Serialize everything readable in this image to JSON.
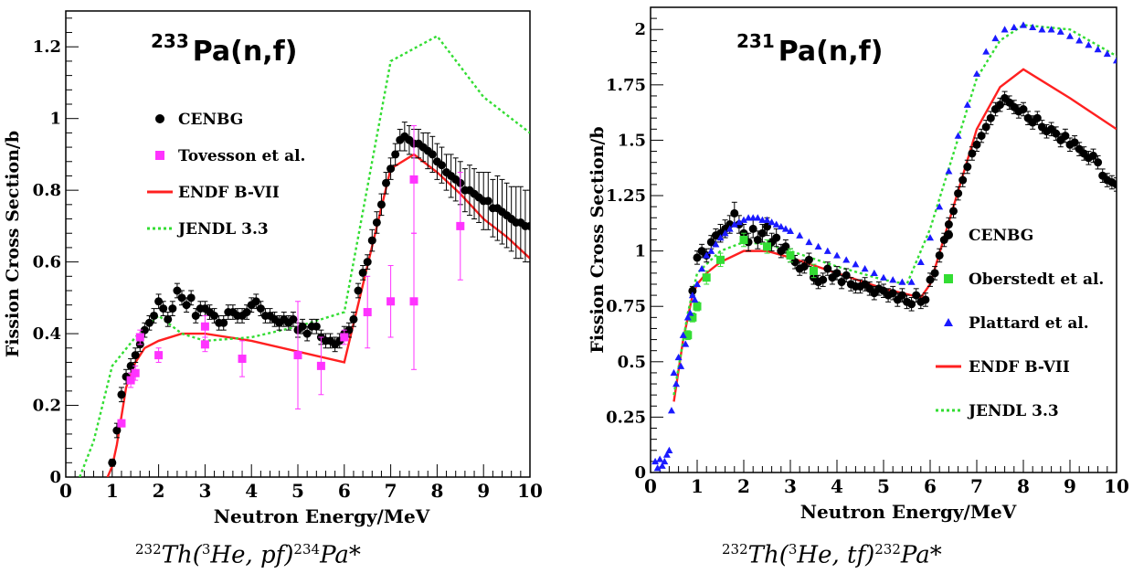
{
  "chart_data": [
    {
      "type": "scatter",
      "title": "233 Pa(n,f)",
      "title_superscript": "233",
      "title_main": "Pa(n,f)",
      "xlabel": "Neutron Energy/MeV",
      "ylabel": "Fission Cross Section/b",
      "xlim": [
        0,
        10
      ],
      "ylim": [
        0,
        1.3
      ],
      "xticks": [
        0,
        1,
        2,
        3,
        4,
        5,
        6,
        7,
        8,
        9,
        10
      ],
      "yticks": [
        0,
        0.2,
        0.4,
        0.6,
        0.8,
        1,
        1.2
      ],
      "ytick_labels": [
        "0",
        "0.2",
        "0.4",
        "0.6",
        "0.8",
        "1",
        "1.2"
      ],
      "legend_position": "left",
      "caption": {
        "l1": "232",
        "t1": "Th(",
        "l2": "3",
        "t2": "He, pf)",
        "l3": "234",
        "t3": "Pa*"
      },
      "series": [
        {
          "name": "CENBG",
          "kind": "points",
          "marker": "circle",
          "color": "#000000",
          "x": [
            1.0,
            1.1,
            1.2,
            1.3,
            1.4,
            1.5,
            1.6,
            1.7,
            1.8,
            1.9,
            2.0,
            2.1,
            2.2,
            2.3,
            2.4,
            2.5,
            2.6,
            2.7,
            2.8,
            2.9,
            3.0,
            3.1,
            3.2,
            3.3,
            3.4,
            3.5,
            3.6,
            3.7,
            3.8,
            3.9,
            4.0,
            4.1,
            4.2,
            4.3,
            4.4,
            4.5,
            4.6,
            4.7,
            4.8,
            4.9,
            5.0,
            5.1,
            5.2,
            5.3,
            5.4,
            5.5,
            5.6,
            5.7,
            5.8,
            5.9,
            6.0,
            6.1,
            6.2,
            6.3,
            6.4,
            6.5,
            6.6,
            6.7,
            6.8,
            6.9,
            7.0,
            7.1,
            7.2,
            7.3,
            7.4,
            7.5,
            7.6,
            7.7,
            7.8,
            7.9,
            8.0,
            8.1,
            8.2,
            8.3,
            8.4,
            8.5,
            8.6,
            8.7,
            8.8,
            8.9,
            9.0,
            9.1,
            9.2,
            9.3,
            9.4,
            9.5,
            9.6,
            9.7,
            9.8,
            9.9,
            10.0
          ],
          "y": [
            0.04,
            0.13,
            0.23,
            0.28,
            0.31,
            0.34,
            0.37,
            0.41,
            0.43,
            0.45,
            0.49,
            0.47,
            0.44,
            0.47,
            0.52,
            0.5,
            0.48,
            0.5,
            0.45,
            0.47,
            0.47,
            0.46,
            0.45,
            0.43,
            0.43,
            0.46,
            0.46,
            0.45,
            0.45,
            0.46,
            0.48,
            0.49,
            0.47,
            0.45,
            0.45,
            0.44,
            0.43,
            0.44,
            0.43,
            0.44,
            0.41,
            0.42,
            0.4,
            0.42,
            0.42,
            0.39,
            0.38,
            0.38,
            0.37,
            0.38,
            0.4,
            0.41,
            0.44,
            0.52,
            0.57,
            0.6,
            0.66,
            0.71,
            0.76,
            0.82,
            0.86,
            0.9,
            0.94,
            0.95,
            0.94,
            0.93,
            0.93,
            0.92,
            0.91,
            0.9,
            0.88,
            0.87,
            0.85,
            0.84,
            0.83,
            0.82,
            0.8,
            0.8,
            0.79,
            0.78,
            0.77,
            0.77,
            0.75,
            0.75,
            0.74,
            0.73,
            0.72,
            0.71,
            0.71,
            0.7,
            0.7
          ],
          "err": [
            0.01,
            0.02,
            0.02,
            0.02,
            0.02,
            0.02,
            0.02,
            0.02,
            0.02,
            0.02,
            0.02,
            0.02,
            0.02,
            0.02,
            0.02,
            0.02,
            0.02,
            0.02,
            0.02,
            0.02,
            0.02,
            0.02,
            0.02,
            0.02,
            0.02,
            0.02,
            0.02,
            0.02,
            0.02,
            0.02,
            0.02,
            0.02,
            0.02,
            0.02,
            0.02,
            0.02,
            0.02,
            0.02,
            0.02,
            0.02,
            0.02,
            0.02,
            0.02,
            0.02,
            0.02,
            0.02,
            0.02,
            0.02,
            0.02,
            0.02,
            0.02,
            0.02,
            0.02,
            0.02,
            0.02,
            0.02,
            0.03,
            0.03,
            0.03,
            0.03,
            0.03,
            0.03,
            0.03,
            0.04,
            0.04,
            0.04,
            0.04,
            0.04,
            0.05,
            0.05,
            0.05,
            0.05,
            0.05,
            0.06,
            0.06,
            0.06,
            0.06,
            0.07,
            0.07,
            0.07,
            0.08,
            0.08,
            0.08,
            0.09,
            0.09,
            0.09,
            0.09,
            0.1,
            0.1,
            0.1,
            0.1
          ]
        },
        {
          "name": "Tovesson et al.",
          "kind": "points",
          "marker": "square",
          "color": "#ff33ff",
          "x": [
            1.2,
            1.4,
            1.5,
            1.6,
            2.0,
            3.0,
            3.0,
            3.8,
            5.0,
            5.5,
            6.0,
            6.5,
            7.0,
            7.5,
            7.5,
            8.5
          ],
          "y": [
            0.15,
            0.27,
            0.29,
            0.39,
            0.34,
            0.37,
            0.42,
            0.33,
            0.34,
            0.31,
            0.39,
            0.46,
            0.49,
            0.49,
            0.83,
            0.7
          ],
          "err": [
            0.01,
            0.02,
            0.02,
            0.02,
            0.02,
            0.02,
            0.03,
            0.05,
            0.15,
            0.08,
            0.02,
            0.1,
            0.1,
            0.19,
            0.15,
            0.15
          ]
        },
        {
          "name": "ENDF B-VII",
          "kind": "line",
          "style": "solid",
          "color": "#ff2020",
          "x": [
            0.9,
            1.0,
            1.1,
            1.2,
            1.3,
            1.5,
            1.7,
            2.0,
            2.5,
            3.0,
            4.0,
            5.0,
            6.0,
            7.0,
            7.5,
            8.0,
            8.5,
            9.0,
            9.5,
            10.0
          ],
          "y": [
            0.0,
            0.03,
            0.09,
            0.17,
            0.25,
            0.32,
            0.36,
            0.38,
            0.4,
            0.4,
            0.38,
            0.35,
            0.32,
            0.86,
            0.9,
            0.85,
            0.79,
            0.72,
            0.67,
            0.61
          ]
        },
        {
          "name": "JENDL 3.3",
          "kind": "line",
          "style": "dotted",
          "color": "#33dd33",
          "x": [
            0.3,
            0.6,
            1.0,
            1.5,
            2.0,
            2.5,
            3.0,
            4.0,
            5.0,
            6.0,
            7.0,
            8.0,
            9.0,
            10.0
          ],
          "y": [
            0.0,
            0.1,
            0.31,
            0.39,
            0.45,
            0.4,
            0.38,
            0.39,
            0.42,
            0.46,
            1.16,
            1.23,
            1.06,
            0.96
          ]
        }
      ]
    },
    {
      "type": "scatter",
      "title": "231 Pa(n,f)",
      "title_superscript": "231",
      "title_main": "Pa(n,f)",
      "xlabel": "Neutron Energy/MeV",
      "ylabel": "Fission Cross Section/b",
      "xlim": [
        0,
        10
      ],
      "ylim": [
        0,
        2.1
      ],
      "xticks": [
        0,
        1,
        2,
        3,
        4,
        5,
        6,
        7,
        8,
        9,
        10
      ],
      "yticks": [
        0,
        0.25,
        0.5,
        0.75,
        1,
        1.25,
        1.5,
        1.75,
        2
      ],
      "ytick_labels": [
        "0",
        "0.25",
        "0.5",
        "0.75",
        "1",
        "1.25",
        "1.5",
        "1.75",
        "2"
      ],
      "legend_position": "right",
      "caption": {
        "l1": "232",
        "t1": "Th(",
        "l2": "3",
        "t2": "He, tf)",
        "l3": "232",
        "t3": "Pa*"
      },
      "series": [
        {
          "name": "CENBG",
          "kind": "points",
          "marker": "circle",
          "color": "#000000",
          "x": [
            0.9,
            1.0,
            1.1,
            1.2,
            1.3,
            1.4,
            1.5,
            1.6,
            1.7,
            1.8,
            1.9,
            2.0,
            2.1,
            2.2,
            2.3,
            2.4,
            2.5,
            2.6,
            2.7,
            2.8,
            2.9,
            3.0,
            3.1,
            3.2,
            3.3,
            3.4,
            3.5,
            3.6,
            3.7,
            3.8,
            3.9,
            4.0,
            4.1,
            4.2,
            4.3,
            4.4,
            4.5,
            4.6,
            4.7,
            4.8,
            4.9,
            5.0,
            5.1,
            5.2,
            5.3,
            5.4,
            5.5,
            5.6,
            5.7,
            5.8,
            5.9,
            6.0,
            6.1,
            6.2,
            6.3,
            6.4,
            6.5,
            6.6,
            6.7,
            6.8,
            6.9,
            7.0,
            7.1,
            7.2,
            7.3,
            7.4,
            7.5,
            7.6,
            7.7,
            7.8,
            7.9,
            8.0,
            8.1,
            8.2,
            8.3,
            8.4,
            8.5,
            8.6,
            8.7,
            8.8,
            8.9,
            9.0,
            9.1,
            9.2,
            9.3,
            9.4,
            9.5,
            9.6,
            9.7,
            9.8,
            9.9,
            10.0
          ],
          "y": [
            0.82,
            0.97,
            1.0,
            0.98,
            1.04,
            1.07,
            1.08,
            1.1,
            1.12,
            1.17,
            1.12,
            1.08,
            1.04,
            1.1,
            1.05,
            1.08,
            1.11,
            1.04,
            1.06,
            1.0,
            1.02,
            0.98,
            0.95,
            0.92,
            0.93,
            0.96,
            0.88,
            0.86,
            0.87,
            0.92,
            0.88,
            0.9,
            0.86,
            0.89,
            0.85,
            0.84,
            0.84,
            0.85,
            0.83,
            0.81,
            0.83,
            0.82,
            0.8,
            0.81,
            0.78,
            0.8,
            0.77,
            0.76,
            0.8,
            0.77,
            0.78,
            0.87,
            0.9,
            0.98,
            1.05,
            1.12,
            1.18,
            1.26,
            1.32,
            1.38,
            1.44,
            1.48,
            1.52,
            1.56,
            1.6,
            1.64,
            1.66,
            1.69,
            1.67,
            1.65,
            1.63,
            1.64,
            1.6,
            1.58,
            1.6,
            1.56,
            1.54,
            1.55,
            1.53,
            1.5,
            1.52,
            1.48,
            1.49,
            1.46,
            1.44,
            1.42,
            1.43,
            1.4,
            1.34,
            1.32,
            1.31,
            1.3
          ],
          "err": [
            0.02,
            0.03,
            0.03,
            0.03,
            0.03,
            0.03,
            0.04,
            0.04,
            0.04,
            0.05,
            0.04,
            0.04,
            0.04,
            0.04,
            0.04,
            0.04,
            0.04,
            0.04,
            0.04,
            0.03,
            0.03,
            0.03,
            0.03,
            0.03,
            0.03,
            0.03,
            0.03,
            0.03,
            0.03,
            0.03,
            0.03,
            0.03,
            0.03,
            0.03,
            0.03,
            0.03,
            0.03,
            0.03,
            0.03,
            0.03,
            0.03,
            0.03,
            0.03,
            0.03,
            0.03,
            0.03,
            0.03,
            0.03,
            0.03,
            0.03,
            0.03,
            0.03,
            0.03,
            0.03,
            0.03,
            0.03,
            0.03,
            0.03,
            0.03,
            0.03,
            0.03,
            0.03,
            0.03,
            0.03,
            0.03,
            0.03,
            0.03,
            0.03,
            0.03,
            0.03,
            0.03,
            0.03,
            0.03,
            0.03,
            0.03,
            0.03,
            0.03,
            0.03,
            0.03,
            0.03,
            0.03,
            0.03,
            0.03,
            0.03,
            0.03,
            0.03,
            0.03,
            0.03,
            0.03,
            0.03,
            0.03,
            0.03
          ]
        },
        {
          "name": "Oberstedt et al.",
          "kind": "points",
          "marker": "square",
          "color": "#33dd33",
          "x": [
            0.8,
            0.9,
            1.0,
            1.2,
            1.5,
            2.0,
            2.5,
            3.0,
            3.5
          ],
          "y": [
            0.62,
            0.7,
            0.75,
            0.88,
            0.96,
            1.05,
            1.02,
            0.98,
            0.91
          ],
          "err": [
            0.02,
            0.02,
            0.02,
            0.03,
            0.03,
            0.03,
            0.03,
            0.03,
            0.03
          ]
        },
        {
          "name": "Plattard et al.",
          "kind": "points",
          "marker": "triangle",
          "color": "#1a1aff",
          "x": [
            0.1,
            0.15,
            0.2,
            0.25,
            0.3,
            0.35,
            0.4,
            0.45,
            0.5,
            0.55,
            0.6,
            0.65,
            0.7,
            0.75,
            0.8,
            0.85,
            0.9,
            0.95,
            1.0,
            1.1,
            1.2,
            1.3,
            1.4,
            1.5,
            1.6,
            1.7,
            1.8,
            1.9,
            2.0,
            2.1,
            2.2,
            2.3,
            2.4,
            2.5,
            2.6,
            2.7,
            2.8,
            2.9,
            3.0,
            3.2,
            3.4,
            3.6,
            3.8,
            4.0,
            4.2,
            4.4,
            4.6,
            4.8,
            5.0,
            5.2,
            5.4,
            5.6,
            5.8,
            6.0,
            6.2,
            6.4,
            6.6,
            6.8,
            7.0,
            7.2,
            7.4,
            7.6,
            7.8,
            8.0,
            8.2,
            8.4,
            8.6,
            8.8,
            9.0,
            9.2,
            9.4,
            9.6,
            9.8,
            10.0
          ],
          "y": [
            0.05,
            0.02,
            0.06,
            0.03,
            0.05,
            0.08,
            0.1,
            0.28,
            0.45,
            0.4,
            0.52,
            0.48,
            0.62,
            0.58,
            0.7,
            0.72,
            0.8,
            0.78,
            0.85,
            0.92,
            0.98,
            1.0,
            1.03,
            1.06,
            1.08,
            1.1,
            1.12,
            1.13,
            1.14,
            1.15,
            1.15,
            1.15,
            1.14,
            1.14,
            1.13,
            1.12,
            1.11,
            1.1,
            1.09,
            1.07,
            1.04,
            1.02,
            1.0,
            0.98,
            0.96,
            0.94,
            0.92,
            0.9,
            0.88,
            0.87,
            0.86,
            0.86,
            0.95,
            1.06,
            1.2,
            1.36,
            1.52,
            1.66,
            1.8,
            1.9,
            1.96,
            2.0,
            2.01,
            2.02,
            2.01,
            2.0,
            2.0,
            1.99,
            1.97,
            1.95,
            1.93,
            1.91,
            1.89,
            1.86
          ]
        },
        {
          "name": "ENDF B-VII",
          "kind": "line",
          "style": "solid",
          "color": "#ff2020",
          "x": [
            0.5,
            0.7,
            0.9,
            1.0,
            1.2,
            1.5,
            2.0,
            2.5,
            3.0,
            4.0,
            5.0,
            5.8,
            6.0,
            7.0,
            7.5,
            8.0,
            9.0,
            10.0
          ],
          "y": [
            0.32,
            0.6,
            0.8,
            0.85,
            0.9,
            0.95,
            1.0,
            1.0,
            0.97,
            0.9,
            0.83,
            0.79,
            0.85,
            1.55,
            1.74,
            1.82,
            1.69,
            1.55
          ]
        },
        {
          "name": "JENDL 3.3",
          "kind": "line",
          "style": "dotted",
          "color": "#33dd33",
          "x": [
            0.5,
            0.8,
            1.0,
            1.5,
            2.0,
            2.5,
            3.0,
            4.0,
            5.0,
            5.5,
            6.0,
            7.0,
            7.5,
            8.0,
            9.0,
            10.0
          ],
          "y": [
            0.35,
            0.72,
            0.9,
            1.0,
            1.04,
            1.03,
            1.0,
            0.93,
            0.87,
            0.85,
            1.1,
            1.78,
            1.95,
            2.02,
            2.0,
            1.88
          ]
        }
      ]
    }
  ]
}
